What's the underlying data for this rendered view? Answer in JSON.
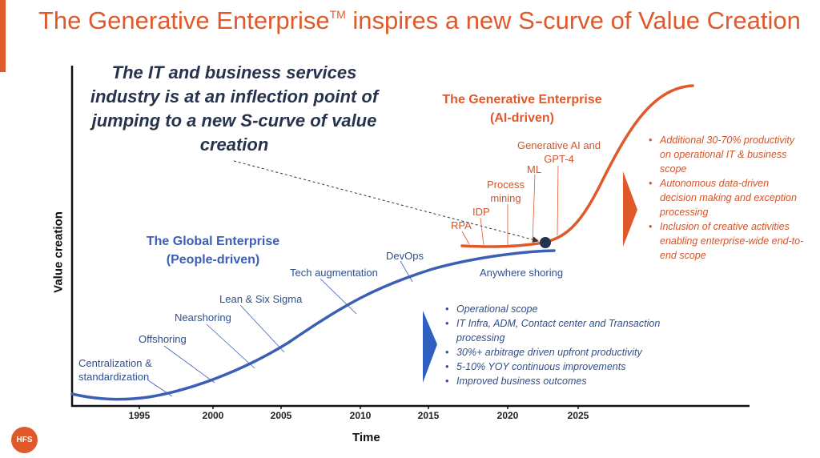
{
  "title": {
    "prefix": "The Generative Enterprise",
    "superscript": "TM",
    "suffix": " inspires a new S-curve of Value Creation"
  },
  "headline": "The IT and business services industry is at an inflection point of jumping to a new S-curve of value creation",
  "eras": {
    "global": {
      "name": "The Global Enterprise",
      "subtitle": "(People-driven)",
      "color": "#3a5fb5"
    },
    "generative": {
      "name": "The Generative Enterprise",
      "subtitle": "(AI-driven)",
      "color": "#e0592a"
    }
  },
  "axes": {
    "x_label": "Time",
    "y_label": "Value creation",
    "ticks": [
      "1995",
      "2000",
      "2005",
      "2010",
      "2015",
      "2020",
      "2025"
    ]
  },
  "global_milestones": [
    {
      "line1": "Centralization &",
      "line2": "standardization"
    },
    {
      "line1": "Offshoring"
    },
    {
      "line1": "Nearshoring"
    },
    {
      "line1": "Lean & Six Sigma"
    },
    {
      "line1": "Tech augmentation"
    },
    {
      "line1": "DevOps"
    },
    {
      "line1": "Anywhere shoring"
    }
  ],
  "generative_milestones": [
    {
      "line1": "RPA"
    },
    {
      "line1": "IDP"
    },
    {
      "line1": "Process",
      "line2": "mining"
    },
    {
      "line1": "ML"
    },
    {
      "line1": "Generative AI and",
      "line2": "GPT-4"
    }
  ],
  "global_bullets": [
    "Operational scope",
    "IT Infra, ADM, Contact center and Transaction processing",
    "30%+ arbitrage driven upfront productivity",
    "5-10% YOY continuous improvements",
    "Improved business outcomes"
  ],
  "generative_bullets": [
    "Additional 30-70% productivity on operational IT & business scope",
    "Autonomous data-driven decision making and exception processing",
    "Inclusion of creative activities enabling enterprise-wide end-to-end scope"
  ],
  "logo_text": "HFS"
}
